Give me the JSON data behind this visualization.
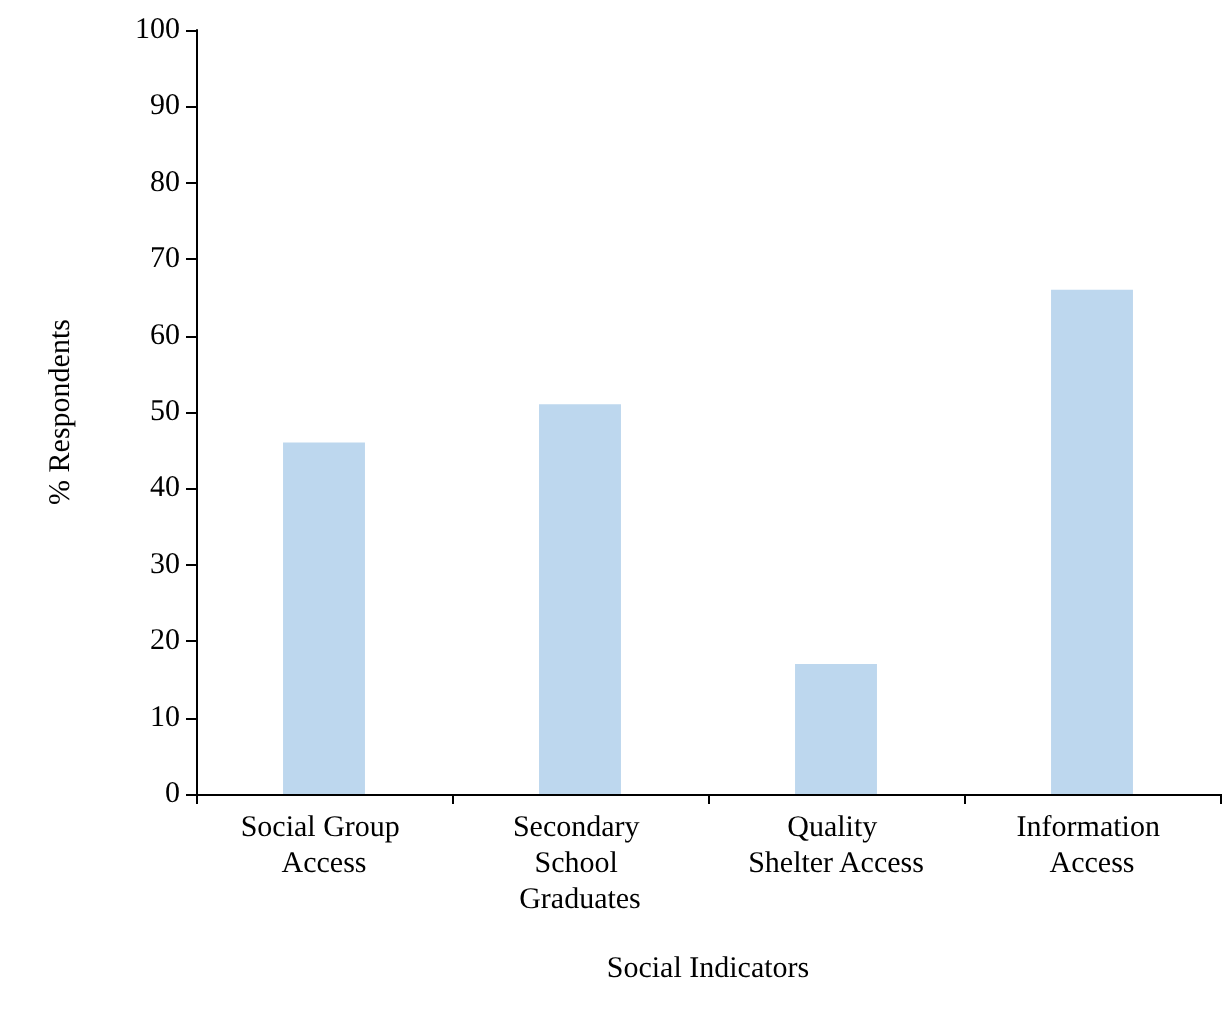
{
  "chart_data": {
    "type": "bar",
    "xlabel": "Social Indicators",
    "ylabel": "% Respondents",
    "categories": [
      "Social Group Access",
      "Secondary School Graduates",
      "Quality Shelter Access",
      "Information Access"
    ],
    "values": [
      46,
      51,
      17,
      66
    ],
    "color": "#bdd7ee",
    "ylim": [
      0,
      100
    ],
    "yticks": [
      0,
      10,
      20,
      30,
      40,
      50,
      60,
      70,
      80,
      90,
      100
    ],
    "grid": false
  }
}
